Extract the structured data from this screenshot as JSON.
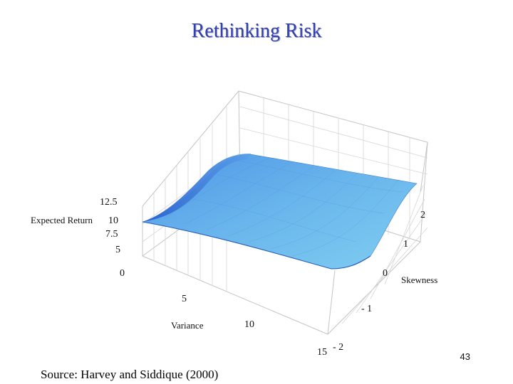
{
  "slide": {
    "title": "Rethinking Risk",
    "page_number": "43",
    "source": "Source: Harvey and Siddique (2000)"
  },
  "figure": {
    "z_axis": {
      "label": "Expected Return",
      "ticks": [
        "12.5",
        "10",
        "7.5",
        "5",
        "0"
      ]
    },
    "x_axis": {
      "label": "Variance",
      "ticks": [
        "5",
        "10",
        "15"
      ]
    },
    "y_axis": {
      "label": "Skewness",
      "ticks": [
        "2",
        "1",
        "0",
        "- 1",
        "- 2"
      ]
    },
    "surface_colors": {
      "light": "#78c8ee",
      "mid": "#5aaee8",
      "dark": "#2e6ed8"
    }
  }
}
